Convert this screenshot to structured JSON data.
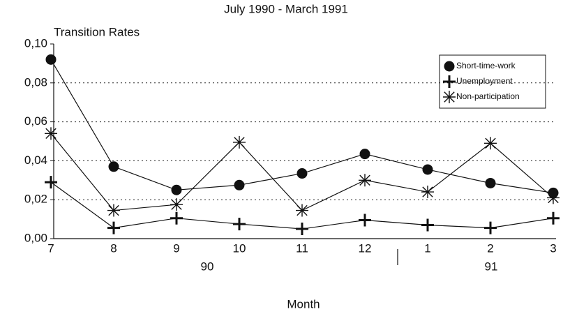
{
  "chart_data": {
    "type": "line",
    "title": "July 1990 - March 1991",
    "y_label": "Transition Rates",
    "x_label": "Month",
    "categories": [
      "7",
      "8",
      "9",
      "10",
      "11",
      "12",
      "1",
      "2",
      "3"
    ],
    "year_groups": [
      "90",
      "91"
    ],
    "ylim": [
      0,
      0.1
    ],
    "yticks": [
      {
        "value": 0,
        "label": "0,00"
      },
      {
        "value": 0.02,
        "label": "0,02"
      },
      {
        "value": 0.04,
        "label": "0,04"
      },
      {
        "value": 0.06,
        "label": "0,06"
      },
      {
        "value": 0.08,
        "label": "0,08"
      },
      {
        "value": 0.1,
        "label": "0,10"
      }
    ],
    "grid": true,
    "legend": "upper right",
    "series": [
      {
        "name": "Short-time-work",
        "color": "#111111",
        "marker": "circle",
        "values": [
          0.092,
          0.037,
          0.025,
          0.0275,
          0.0335,
          0.0435,
          0.0355,
          0.0285,
          0.0235
        ]
      },
      {
        "name": "Unemployment",
        "color": "#111111",
        "marker": "plus",
        "values": [
          0.029,
          0.0055,
          0.0105,
          0.0075,
          0.005,
          0.0095,
          0.007,
          0.0055,
          0.0105
        ]
      },
      {
        "name": "Non-participation",
        "color": "#111111",
        "marker": "asterisk",
        "values": [
          0.054,
          0.0145,
          0.0175,
          0.0495,
          0.0145,
          0.03,
          0.024,
          0.049,
          0.021
        ]
      }
    ]
  }
}
